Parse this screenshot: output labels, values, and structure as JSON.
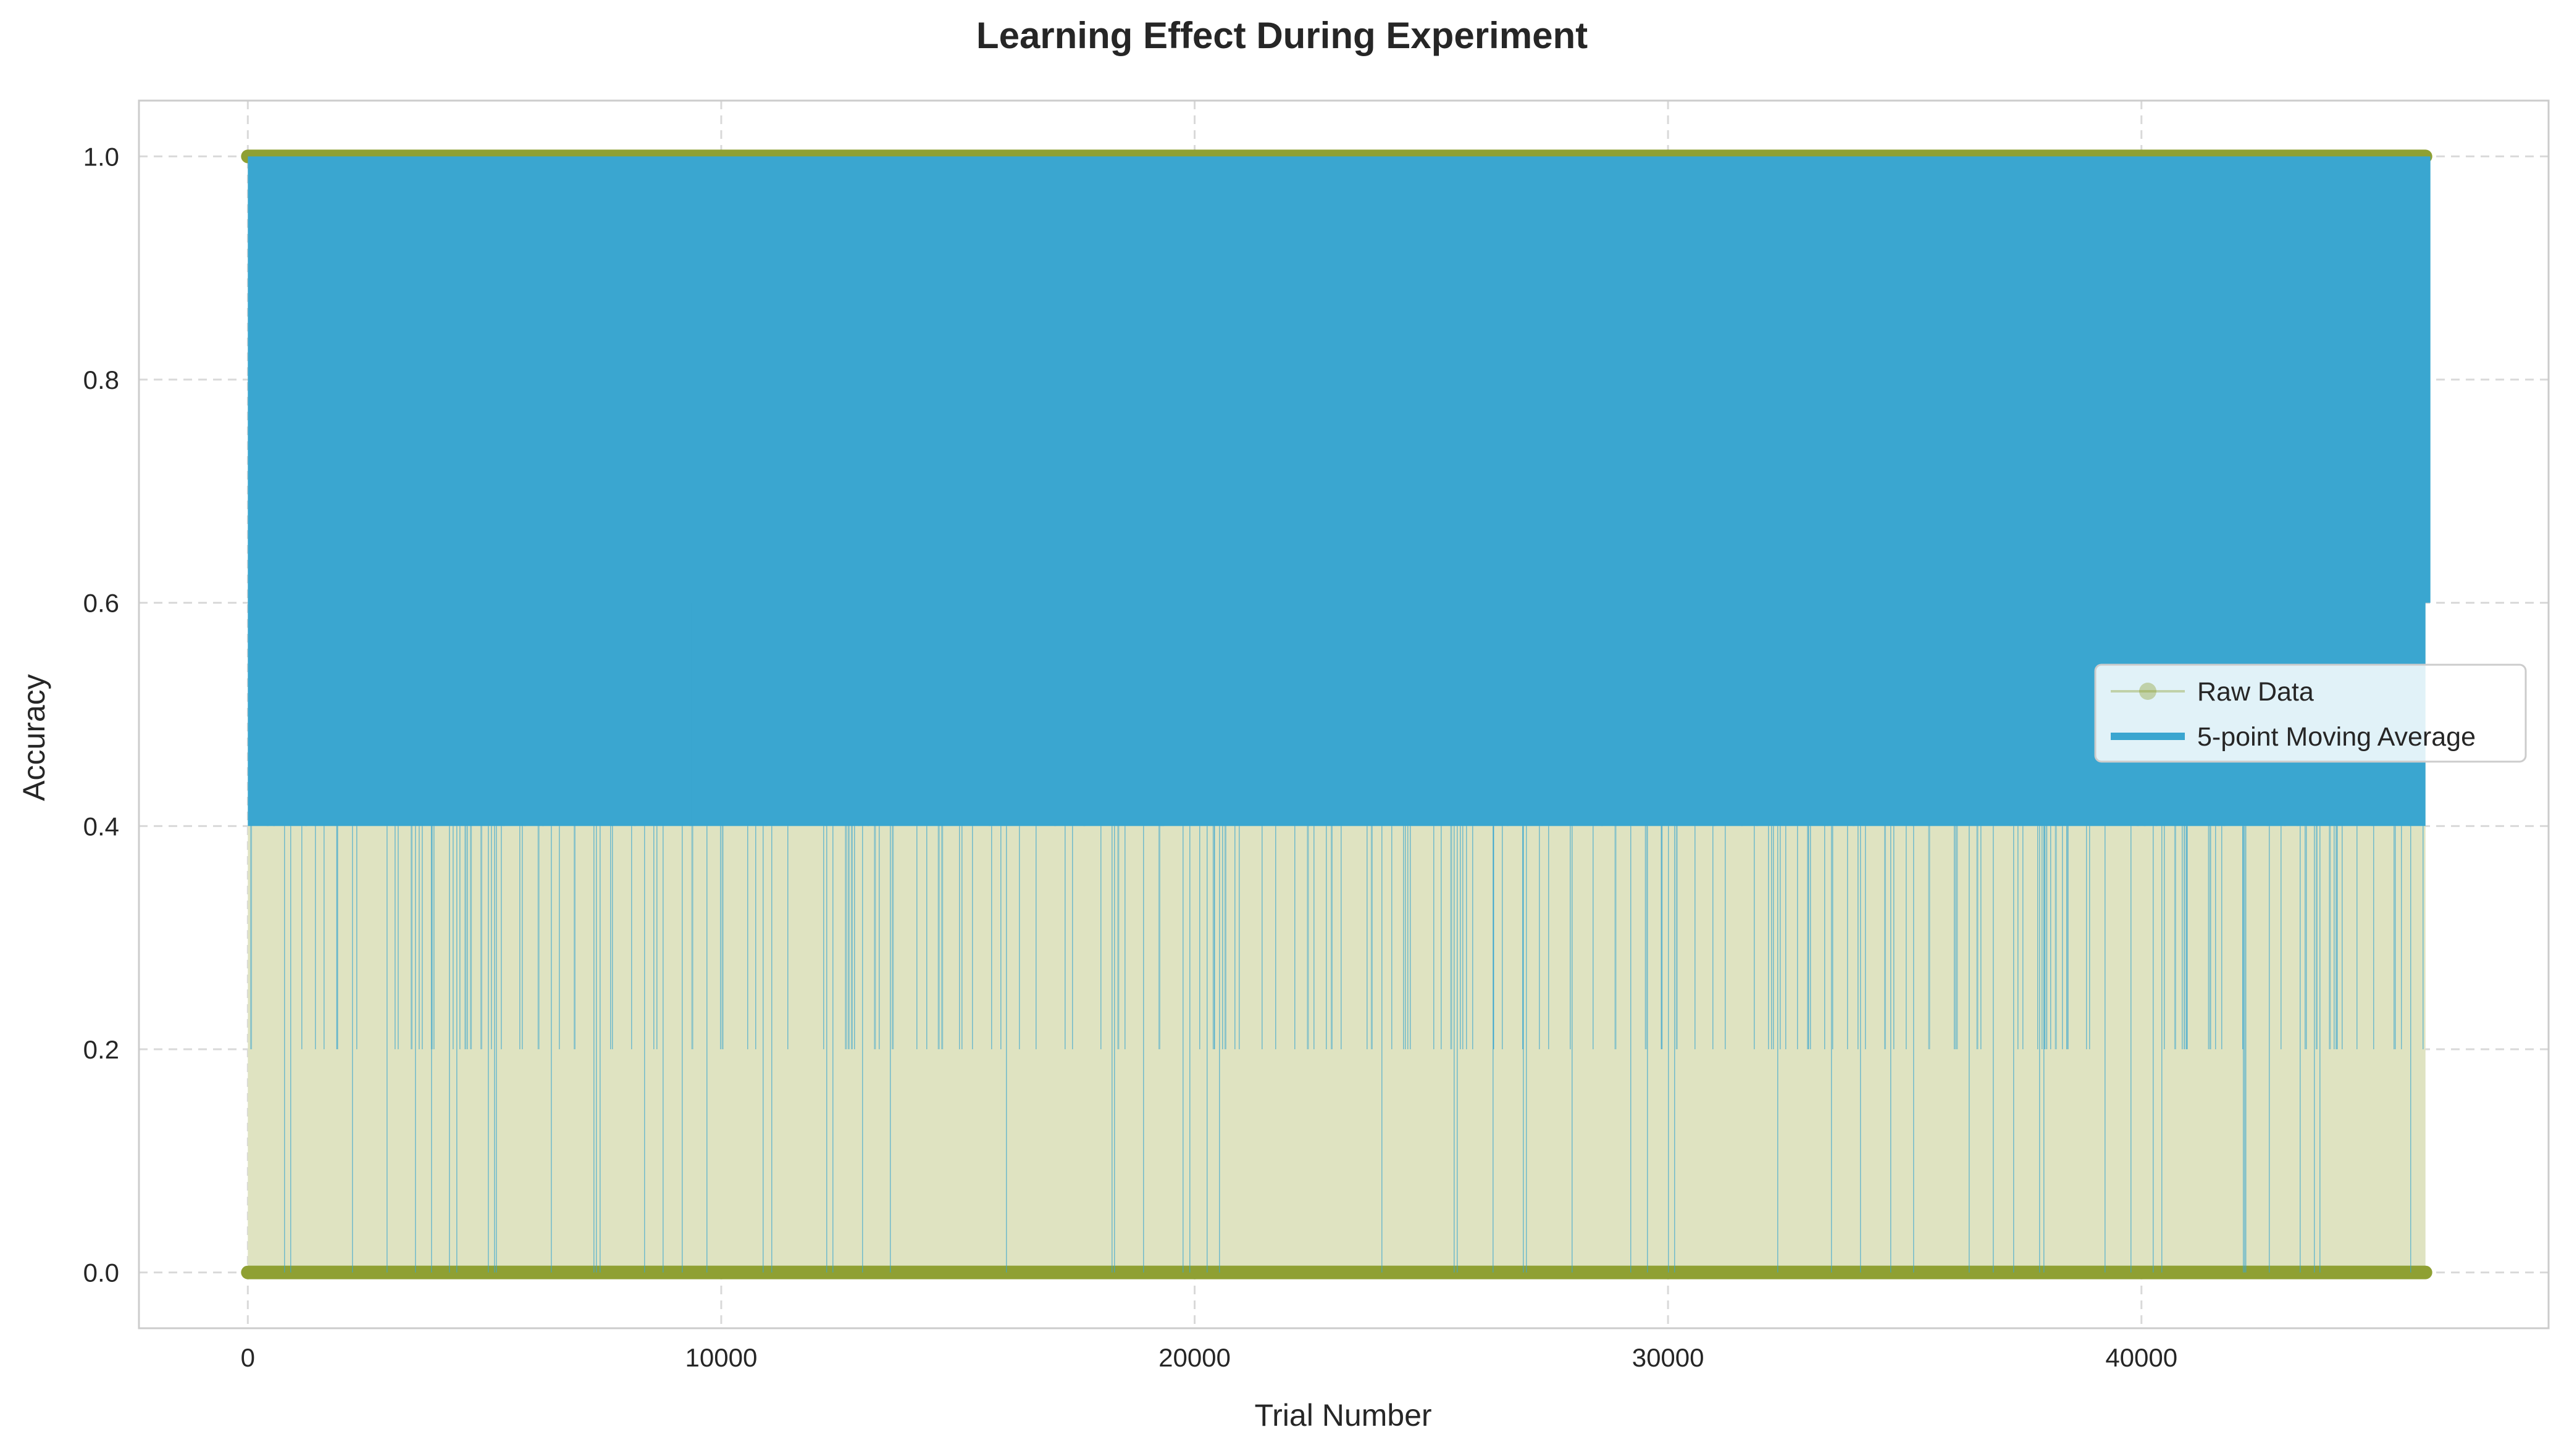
{
  "chart_data": {
    "type": "line",
    "title": "Learning Effect During Experiment",
    "xlabel": "Trial Number",
    "ylabel": "Accuracy",
    "xlim": [
      -2300,
      48600
    ],
    "ylim": [
      -0.05,
      1.05
    ],
    "x_ticks": [
      0,
      10000,
      20000,
      30000,
      40000
    ],
    "x_tick_labels": [
      "0",
      "10000",
      "20000",
      "30000",
      "40000"
    ],
    "y_ticks": [
      0.0,
      0.2,
      0.4,
      0.6,
      0.8,
      1.0
    ],
    "y_tick_labels": [
      "0.0",
      "0.2",
      "0.4",
      "0.6",
      "0.8",
      "1.0"
    ],
    "grid": true,
    "legend_position": "center-right",
    "n_trials": 46000,
    "series": [
      {
        "name": "Raw Data",
        "kind": "binary line with markers",
        "color": "#8fa033",
        "fill_color": "#dfe3c1",
        "marker": "circle",
        "x_range": [
          0,
          46000
        ],
        "values_taken": [
          0,
          1
        ]
      },
      {
        "name": "5-point Moving Average",
        "kind": "line",
        "color": "#3aa6d0",
        "x_range": [
          0,
          46000
        ],
        "values_taken": [
          0.0,
          0.2,
          0.4,
          0.6,
          0.8,
          1.0
        ]
      }
    ],
    "colors": {
      "axes_frame": "#cccccc",
      "grid": "#d9d9d9",
      "text": "#262626"
    }
  }
}
